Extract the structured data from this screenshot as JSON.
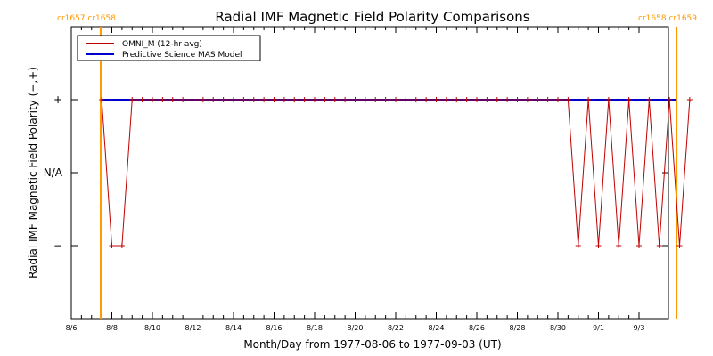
{
  "chart_data": {
    "type": "line",
    "title": "Radial IMF Magnetic Field Polarity Comparisons",
    "xlabel": "Month/Day from 1977-08-06 to 1977-09-03 (UT)",
    "ylabel": "Radial IMF Magnetic Field Polarity (−,+)",
    "x_range_days": [
      0,
      28
    ],
    "x_ticks": [
      {
        "day": 0,
        "label": "8/6"
      },
      {
        "day": 2,
        "label": "8/8"
      },
      {
        "day": 4,
        "label": "8/10"
      },
      {
        "day": 6,
        "label": "8/12"
      },
      {
        "day": 8,
        "label": "8/14"
      },
      {
        "day": 10,
        "label": "8/16"
      },
      {
        "day": 12,
        "label": "8/18"
      },
      {
        "day": 14,
        "label": "8/20"
      },
      {
        "day": 16,
        "label": "8/22"
      },
      {
        "day": 18,
        "label": "8/24"
      },
      {
        "day": 20,
        "label": "8/26"
      },
      {
        "day": 22,
        "label": "8/28"
      },
      {
        "day": 24,
        "label": "8/30"
      },
      {
        "day": 26,
        "label": "9/1"
      },
      {
        "day": 28,
        "label": "9/3"
      }
    ],
    "ylim": [
      -2,
      2
    ],
    "y_ticks": [
      {
        "value": 1,
        "label": "+"
      },
      {
        "value": 0,
        "label": "N/A"
      },
      {
        "value": -1,
        "label": "−"
      }
    ],
    "carrington_markers": [
      {
        "day": 1.45,
        "label": "cr1657 cr1658",
        "color": "#ff9900",
        "side": "left"
      },
      {
        "day": 29.85,
        "label": "cr1658 cr1659",
        "color": "#ff9900",
        "side": "right"
      }
    ],
    "legend_position": "top-left",
    "series": [
      {
        "name": "OMNI_M (12-hr avg)",
        "color": "#c00000",
        "x_step_days": 0.5,
        "x_start_day": 1.5,
        "values": [
          1,
          -1,
          -1,
          1,
          1,
          1,
          1,
          1,
          1,
          1,
          1,
          1,
          1,
          1,
          1,
          1,
          1,
          1,
          1,
          1,
          1,
          1,
          1,
          1,
          1,
          1,
          1,
          1,
          1,
          1,
          1,
          1,
          1,
          1,
          1,
          1,
          1,
          1,
          1,
          1,
          1,
          1,
          1,
          1,
          1,
          1,
          1,
          -1,
          1,
          -1,
          1,
          -1,
          1,
          -1,
          1,
          -1,
          1,
          -1,
          1
        ]
      },
      {
        "name": "Predictive Science MAS Model",
        "color": "#0000cc",
        "x": [
          1.5,
          29.85
        ],
        "values": [
          1,
          1
        ]
      }
    ]
  }
}
